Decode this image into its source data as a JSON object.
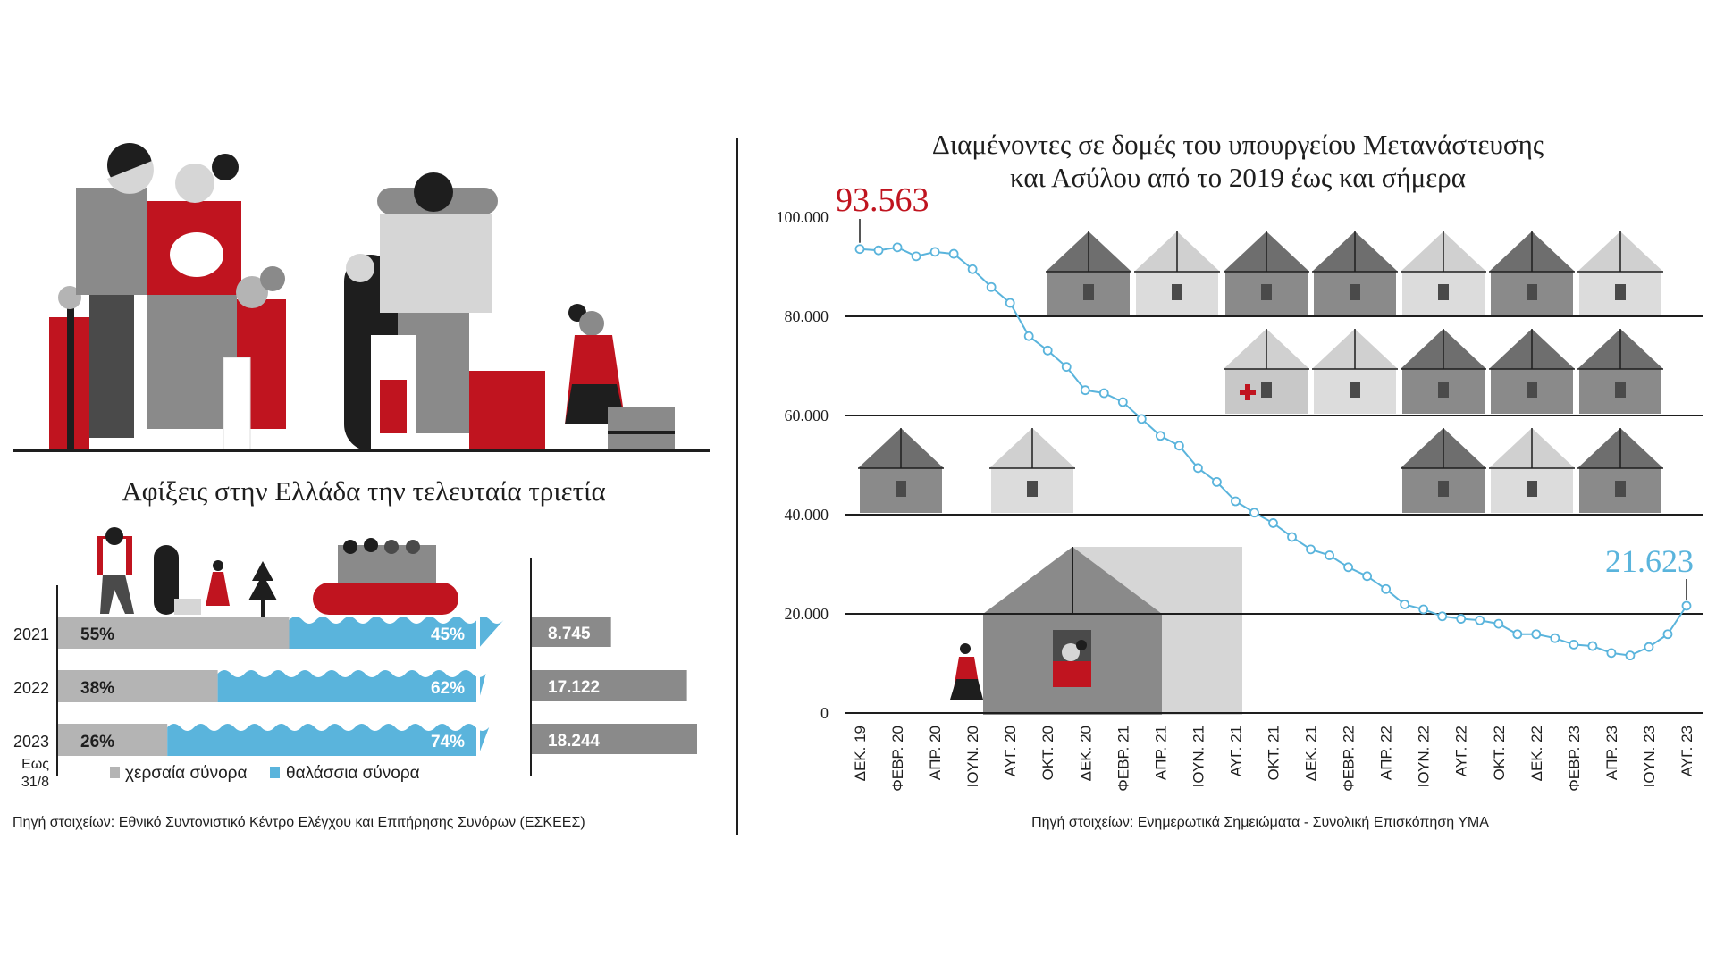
{
  "left": {
    "title": "Αφίξεις στην Ελλάδα την τελευταία τριετία",
    "note": [
      "Εως",
      "31/8"
    ],
    "legend": [
      "χερσαία σύνορα",
      "θαλάσσια σύνορα"
    ],
    "source": "Πηγή στοιχείων: Εθνικό Συντονιστικό Κέντρο Ελέγχου και Επιτήρησης Συνόρων (ΕΣΚΕΕΣ)"
  },
  "right": {
    "title_lines": [
      "Διαμένοντες σε δομές του υπουργείου Μετανάστευσης",
      "και Ασύλου από το 2019 έως και σήμερα"
    ],
    "first_label": "93.563",
    "last_label": "21.623",
    "source": "Πηγή στοιχείων: Ενημερωτικά Σημειώματα - Συνολική Επισκόπηση ΥΜΑ"
  },
  "colors": {
    "red": "#c0141f",
    "blue": "#5ab4dc",
    "land": "#b4b4b4",
    "total": "#8a8a8a",
    "dark": "#1e1e1e"
  },
  "chart_data": [
    {
      "type": "bar",
      "title": "Αφίξεις στην Ελλάδα την τελευταία τριετία",
      "categories": [
        "2021",
        "2022",
        "2023"
      ],
      "series": [
        {
          "name": "χερσαία σύνορα",
          "values": [
            55,
            38,
            26
          ],
          "labels": [
            "55%",
            "38%",
            "26%"
          ]
        },
        {
          "name": "θαλάσσια σύνορα",
          "values": [
            45,
            62,
            74
          ],
          "labels": [
            "45%",
            "62%",
            "74%"
          ]
        }
      ],
      "totals": {
        "values": [
          8745,
          17122,
          18244
        ],
        "labels": [
          "8.745",
          "17.122",
          "18.244"
        ]
      },
      "stacked": true,
      "legend": "bottom"
    },
    {
      "type": "line",
      "title": "Διαμένοντες σε δομές του υπουργείου Μετανάστευσης και Ασύλου από το 2019 έως και σήμερα",
      "ylim": [
        0,
        100000
      ],
      "yticks": [
        0,
        20000,
        40000,
        60000,
        80000,
        100000
      ],
      "ytick_labels": [
        "0",
        "20.000",
        "40.000",
        "60.000",
        "80.000",
        "100.000"
      ],
      "xtick_labels": [
        "ΔΕΚ. 19",
        "ΦΕΒΡ. 20",
        "ΑΠΡ. 20",
        "ΙΟΥΝ. 20",
        "ΑΥΓ. 20",
        "ΟΚΤ. 20",
        "ΔΕΚ. 20",
        "ΦΕΒΡ. 21",
        "ΑΠΡ. 21",
        "ΙΟΥΝ. 21",
        "ΑΥΓ. 21",
        "ΟΚΤ. 21",
        "ΔΕΚ. 21",
        "ΦΕΒΡ. 22",
        "ΑΠΡ. 22",
        "ΙΟΥΝ. 22",
        "ΑΥΓ. 22",
        "ΟΚΤ. 22",
        "ΔΕΚ. 22",
        "ΦΕΒΡ. 23",
        "ΑΠΡ. 23",
        "ΙΟΥΝ. 23",
        "ΑΥΓ. 23"
      ],
      "values": [
        93563,
        93300,
        93900,
        92100,
        93000,
        92600,
        89500,
        85900,
        82700,
        76000,
        73100,
        69800,
        65100,
        64500,
        62700,
        59300,
        55900,
        53900,
        49400,
        46600,
        42700,
        40400,
        38300,
        35500,
        33000,
        31800,
        29400,
        27600,
        25000,
        21900,
        20900,
        19500,
        19000,
        18700,
        18000,
        15900,
        15900,
        15100,
        13800,
        13500,
        12100,
        11600,
        13300,
        15900,
        21623
      ],
      "grid": true
    }
  ]
}
